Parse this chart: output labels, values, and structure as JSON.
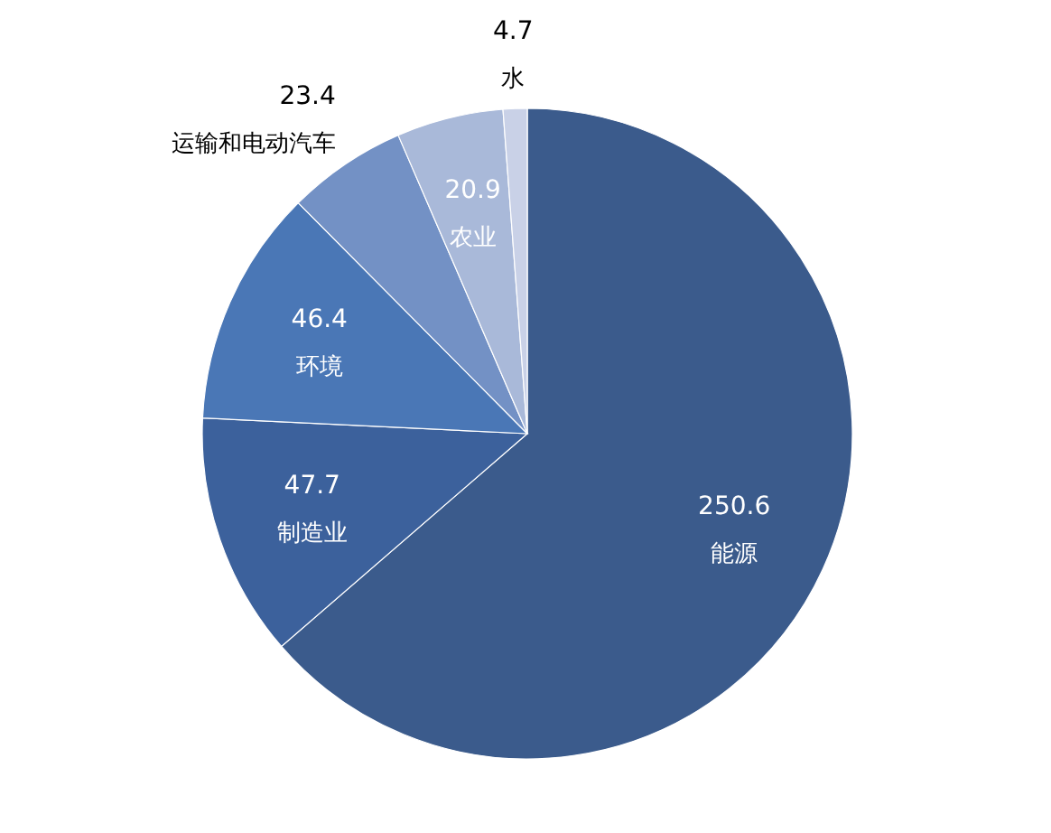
{
  "chart_data": {
    "type": "pie",
    "categories": [
      "能源",
      "制造业",
      "环境",
      "运输和电动汽车",
      "农业",
      "水"
    ],
    "values": [
      250.6,
      47.7,
      46.4,
      23.4,
      20.9,
      4.7
    ],
    "colors": [
      "#3b5b8c",
      "#3c619c",
      "#4a77b6",
      "#7391c5",
      "#a9b9d9",
      "#c9d1e7"
    ],
    "data_labels": true
  }
}
